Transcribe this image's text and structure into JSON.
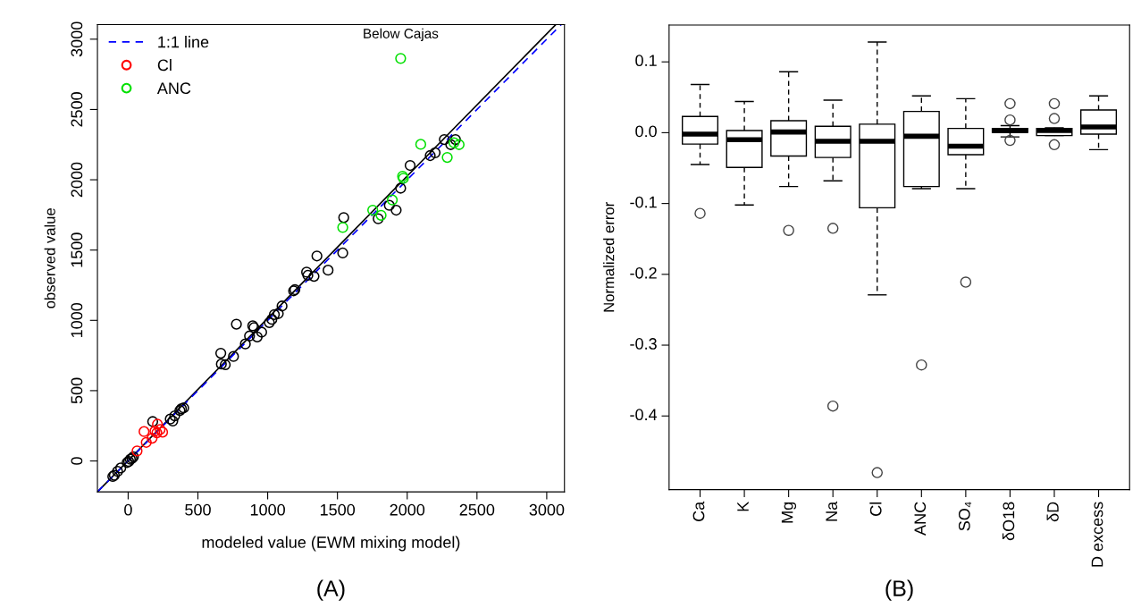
{
  "chart_data": [
    {
      "type": "scatter",
      "xlabel": "modeled value (EWM mixing model)",
      "ylabel": "observed value",
      "xlim": [
        -220,
        3127
      ],
      "ylim": [
        -220,
        3104
      ],
      "xticks": [
        0,
        500,
        1000,
        1500,
        2000,
        2500,
        3000
      ],
      "yticks": [
        0,
        500,
        1000,
        1500,
        2000,
        2500,
        3000
      ],
      "grid": false,
      "legend": "top left",
      "series": [
        {
          "type": "line",
          "color": "#000000",
          "line_style": "solid",
          "marker": "none",
          "x": [
            -220,
            3065
          ],
          "values": [
            -220,
            3104
          ]
        },
        {
          "type": "line",
          "name": "1:1 line",
          "color": "#0000ff",
          "line_style": "dashed",
          "marker": "none",
          "x": [
            -220,
            3104
          ],
          "values": [
            -220,
            3104
          ]
        },
        {
          "color": "#000000",
          "marker": "circle",
          "x": [
            2266,
            2312,
            2346,
            2165,
            2200,
            2021,
            1953,
            1872,
            1921,
            1792,
            1545,
            1538,
            1353,
            1279,
            1288,
            1332,
            1433,
            1195,
            1186,
            776,
            664,
            755,
            668,
            696,
            840,
            870,
            893,
            902,
            925,
            957,
            1012,
            1030,
            1048,
            1076,
            1103,
            176,
            302,
            320,
            334,
            371,
            382,
            398,
            38,
            16,
            -7,
            28,
            4,
            -53,
            -76,
            -99,
            -110
          ],
          "values": [
            2286,
            2250,
            2286,
            2172,
            2192,
            2102,
            1940,
            1818,
            1784,
            1723,
            1731,
            1479,
            1458,
            1343,
            1320,
            1313,
            1357,
            1218,
            1210,
            973,
            766,
            743,
            689,
            684,
            832,
            889,
            961,
            948,
            882,
            916,
            984,
            1007,
            1041,
            1048,
            1102,
            280,
            298,
            284,
            321,
            359,
            371,
            377,
            30,
            12,
            -11,
            18,
            -4,
            -50,
            -74,
            -102,
            -111
          ]
        },
        {
          "name": "Cl",
          "color": "#ff0000",
          "marker": "circle",
          "x": [
            114,
            130,
            172,
            64,
            210,
            192,
            229,
            247,
            206
          ],
          "values": [
            209,
            132,
            162,
            71,
            261,
            212,
            223,
            205,
            200
          ]
        },
        {
          "name": "ANC",
          "color": "#00e000",
          "marker": "circle",
          "x": [
            1953,
            2097,
            2335,
            2372,
            2287,
            1967,
            1973,
            1893,
            1753,
            1813,
            1538
          ],
          "values": [
            2863,
            2252,
            2263,
            2250,
            2159,
            2025,
            2011,
            1856,
            1784,
            1747,
            1661
          ]
        }
      ],
      "annotations": [
        {
          "text": "Below Cajas",
          "x": 1953,
          "y": 2863
        },
        "(A)"
      ]
    },
    {
      "type": "box",
      "ylabel": "Normalized error",
      "ylim": [
        -0.504,
        0.152
      ],
      "yticks": [
        -0.4,
        -0.3,
        -0.2,
        -0.1,
        {
          "value": 0,
          "label": "0.0"
        },
        0.1
      ],
      "grid": false,
      "categories": [
        "Ca",
        "K",
        "Mg",
        "Na",
        "Cl",
        "ANC",
        "SO₄",
        "δO18",
        "δD",
        "D excess"
      ],
      "boxes": [
        {
          "low": -0.045,
          "q1": -0.016,
          "median": -0.002,
          "q3": 0.023,
          "high": 0.068,
          "outliers": [
            -0.114
          ]
        },
        {
          "low": -0.102,
          "q1": -0.049,
          "median": -0.01,
          "q3": 0.003,
          "high": 0.044
        },
        {
          "low": -0.076,
          "q1": -0.033,
          "median": 0.001,
          "q3": 0.017,
          "high": 0.086,
          "outliers": [
            -0.138
          ]
        },
        {
          "low": -0.068,
          "q1": -0.035,
          "median": -0.012,
          "q3": 0.009,
          "high": 0.046,
          "outliers": [
            -0.135,
            -0.386
          ]
        },
        {
          "low": -0.229,
          "q1": -0.106,
          "median": -0.012,
          "q3": 0.012,
          "high": 0.128,
          "outliers": [
            -0.48
          ]
        },
        {
          "low": -0.079,
          "q1": -0.076,
          "median": -0.005,
          "q3": 0.03,
          "high": 0.052,
          "outliers": [
            -0.328
          ]
        },
        {
          "low": -0.079,
          "q1": -0.031,
          "median": -0.019,
          "q3": 0.006,
          "high": 0.048,
          "outliers": [
            -0.211
          ]
        },
        {
          "low": -0.006,
          "q1": 0.0005,
          "median": 0.003,
          "q3": 0.006,
          "high": 0.01,
          "outliers": [
            0.041,
            0.018,
            -0.011
          ]
        },
        {
          "low": -0.004,
          "q1": -0.004,
          "median": 0.003,
          "q3": 0.006,
          "high": 0.007,
          "outliers": [
            0.041,
            0.02,
            -0.017
          ]
        },
        {
          "low": -0.024,
          "q1": -0.002,
          "median": 0.008,
          "q3": 0.032,
          "high": 0.052
        }
      ],
      "annotations": [
        "(B)"
      ]
    }
  ]
}
